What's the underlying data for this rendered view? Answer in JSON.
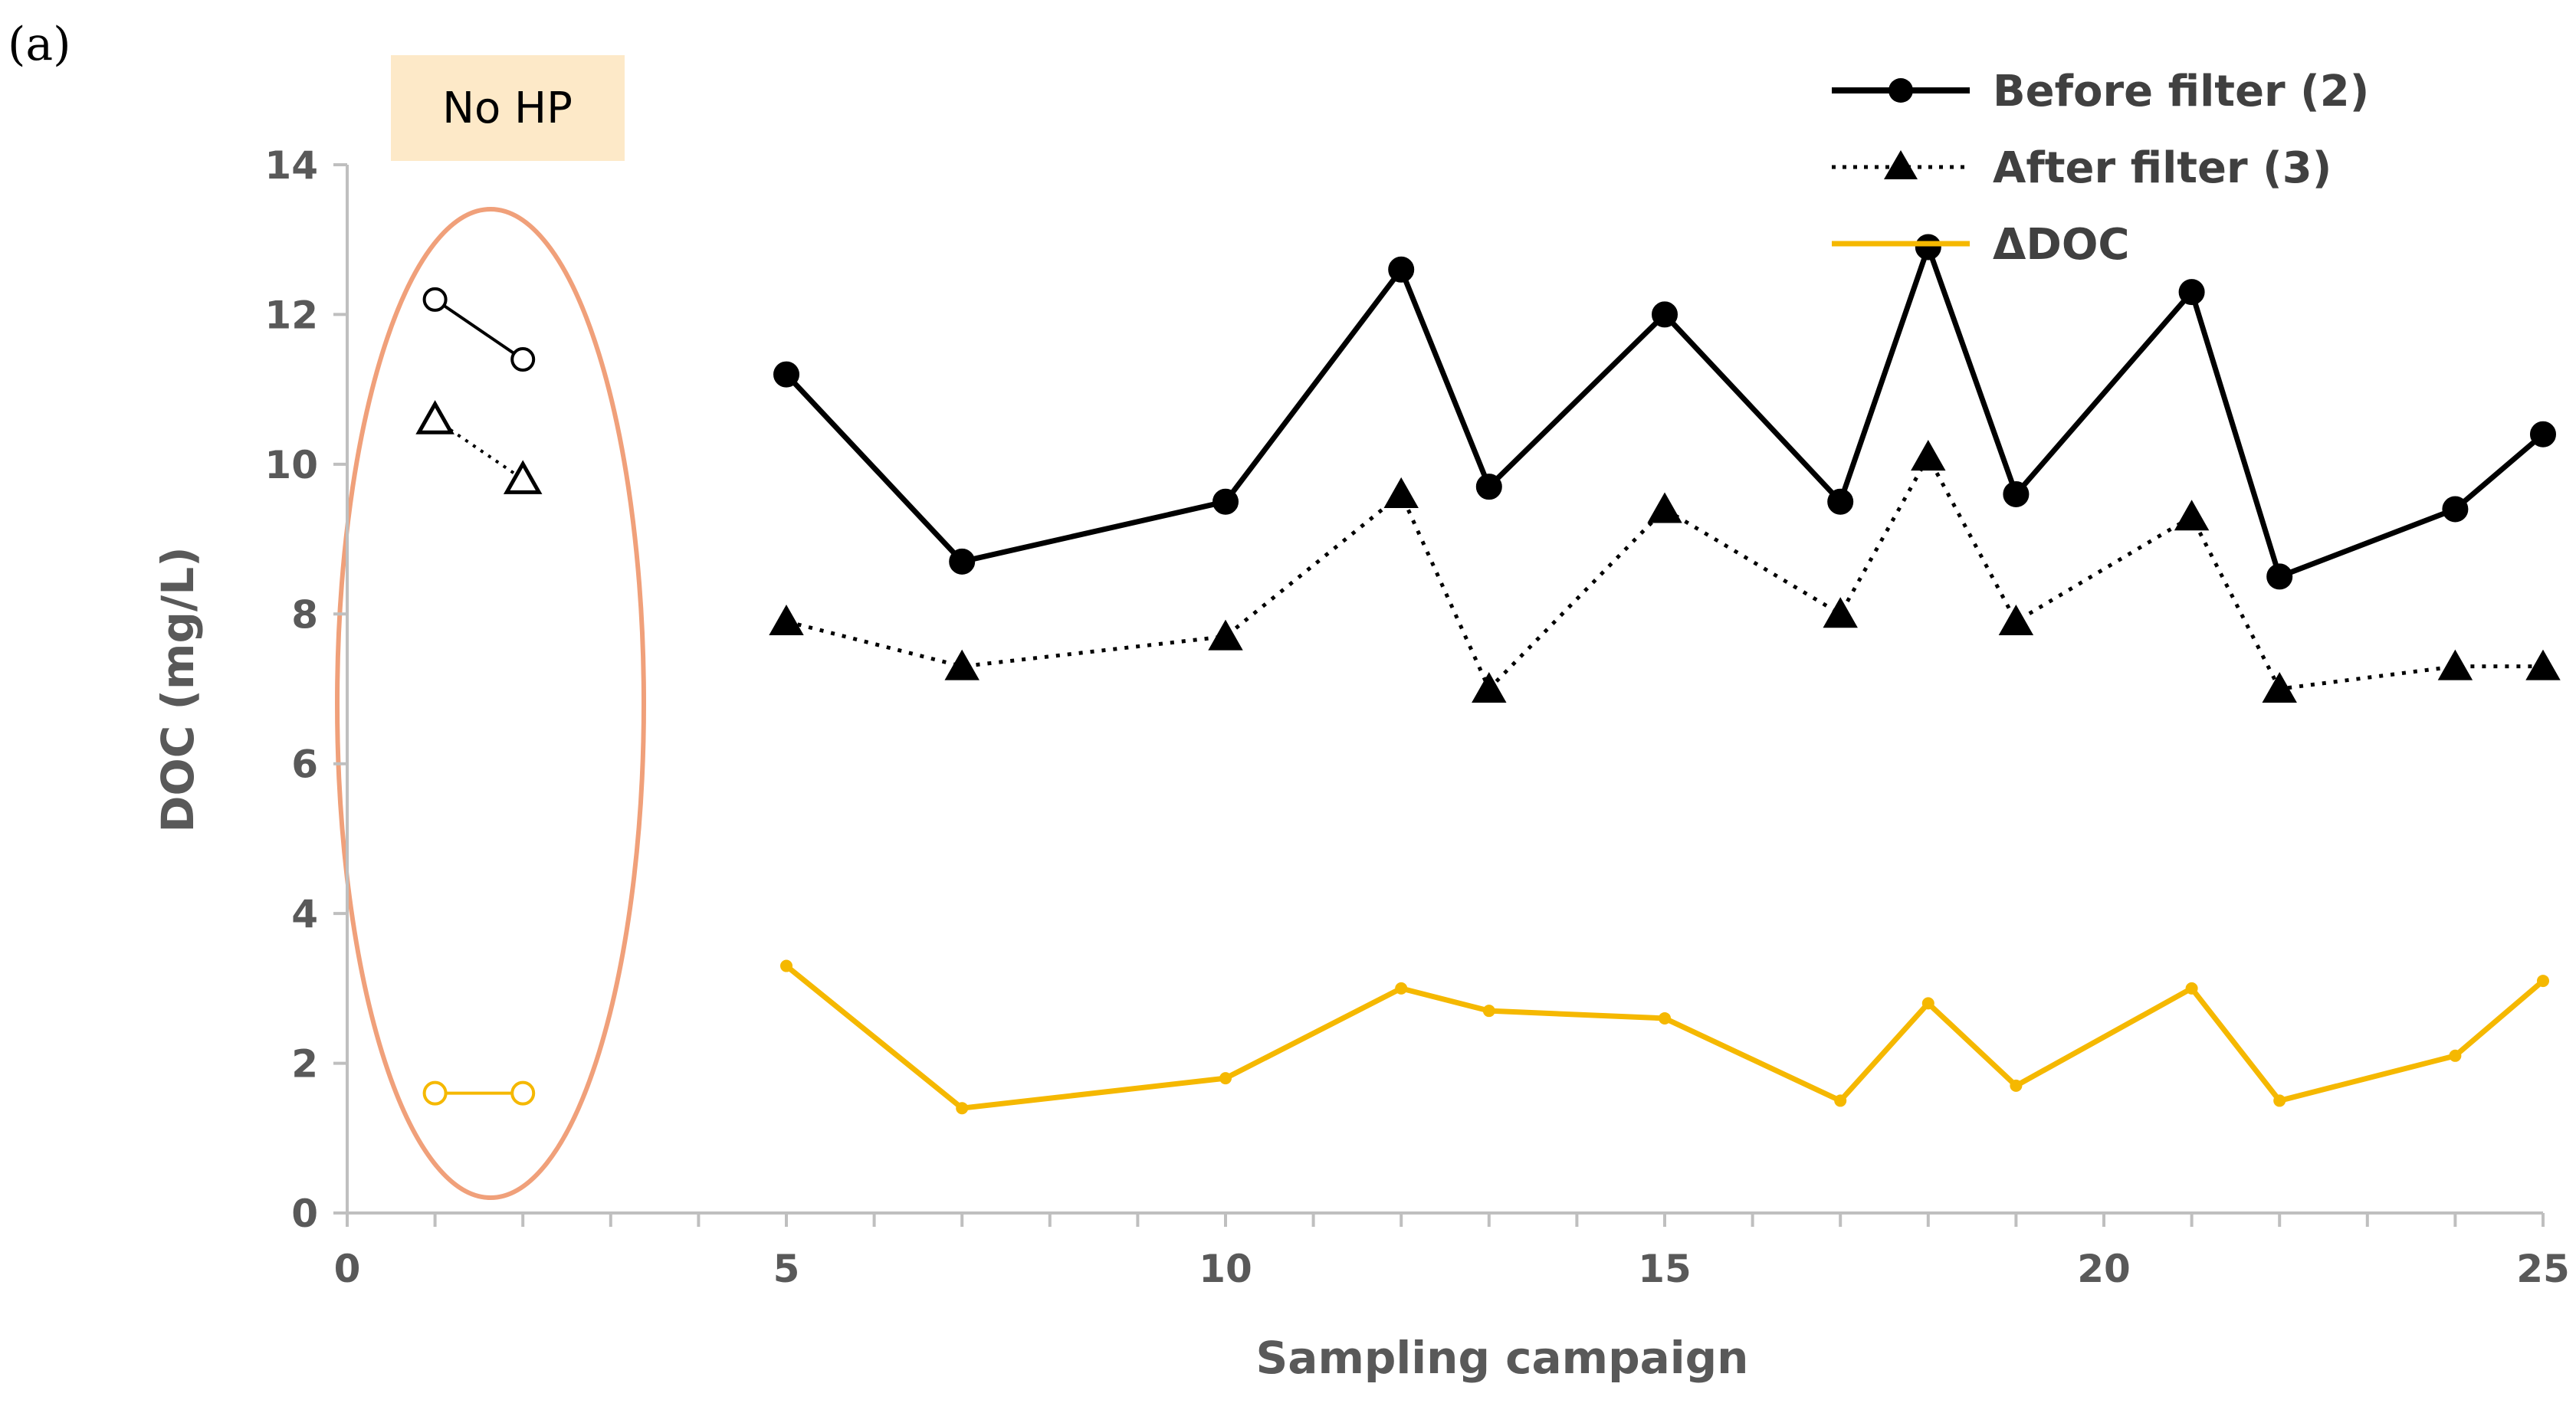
{
  "panel_label": "(a)",
  "chart_data": {
    "type": "line",
    "title": "",
    "xlabel": "Sampling campaign",
    "ylabel": "DOC (mg/L)",
    "xlim": [
      0,
      25
    ],
    "ylim": [
      0,
      14
    ],
    "x_ticks": [
      0,
      5,
      10,
      15,
      20,
      25
    ],
    "y_ticks": [
      0,
      2,
      4,
      6,
      8,
      10,
      12,
      14
    ],
    "grid": false,
    "legend_position": "top-right",
    "annotation": {
      "text": "No HP",
      "applies_to_x": [
        1,
        2
      ]
    },
    "series": [
      {
        "name": "Before filter (2)",
        "color": "#000000",
        "line_style": "solid",
        "marker": "circle",
        "no_hp_points": [
          {
            "x": 1,
            "y": 12.2
          },
          {
            "x": 2,
            "y": 11.4
          }
        ],
        "points": [
          {
            "x": 5,
            "y": 11.2
          },
          {
            "x": 7,
            "y": 8.7
          },
          {
            "x": 10,
            "y": 9.5
          },
          {
            "x": 12,
            "y": 12.6
          },
          {
            "x": 13,
            "y": 9.7
          },
          {
            "x": 15,
            "y": 12.0
          },
          {
            "x": 17,
            "y": 9.5
          },
          {
            "x": 18,
            "y": 12.9
          },
          {
            "x": 19,
            "y": 9.6
          },
          {
            "x": 21,
            "y": 12.3
          },
          {
            "x": 22,
            "y": 8.5
          },
          {
            "x": 24,
            "y": 9.4
          },
          {
            "x": 25,
            "y": 10.4
          }
        ]
      },
      {
        "name": "After filter (3)",
        "color": "#000000",
        "line_style": "dotted",
        "marker": "triangle",
        "no_hp_points": [
          {
            "x": 1,
            "y": 10.6
          },
          {
            "x": 2,
            "y": 9.8
          }
        ],
        "points": [
          {
            "x": 5,
            "y": 7.9
          },
          {
            "x": 7,
            "y": 7.3
          },
          {
            "x": 10,
            "y": 7.7
          },
          {
            "x": 12,
            "y": 9.6
          },
          {
            "x": 13,
            "y": 7.0
          },
          {
            "x": 15,
            "y": 9.4
          },
          {
            "x": 17,
            "y": 8.0
          },
          {
            "x": 18,
            "y": 10.1
          },
          {
            "x": 19,
            "y": 7.9
          },
          {
            "x": 21,
            "y": 9.3
          },
          {
            "x": 22,
            "y": 7.0
          },
          {
            "x": 24,
            "y": 7.3
          },
          {
            "x": 25,
            "y": 7.3
          }
        ]
      },
      {
        "name": "ΔDOC",
        "color": "#f5b800",
        "line_style": "solid",
        "marker": "small-dot",
        "no_hp_points": [
          {
            "x": 1,
            "y": 1.6
          },
          {
            "x": 2,
            "y": 1.6
          }
        ],
        "points": [
          {
            "x": 5,
            "y": 3.3
          },
          {
            "x": 7,
            "y": 1.4
          },
          {
            "x": 10,
            "y": 1.8
          },
          {
            "x": 12,
            "y": 3.0
          },
          {
            "x": 13,
            "y": 2.7
          },
          {
            "x": 15,
            "y": 2.6
          },
          {
            "x": 17,
            "y": 1.5
          },
          {
            "x": 18,
            "y": 2.8
          },
          {
            "x": 19,
            "y": 1.7
          },
          {
            "x": 21,
            "y": 3.0
          },
          {
            "x": 22,
            "y": 1.5
          },
          {
            "x": 24,
            "y": 2.1
          },
          {
            "x": 25,
            "y": 3.1
          }
        ]
      }
    ]
  }
}
